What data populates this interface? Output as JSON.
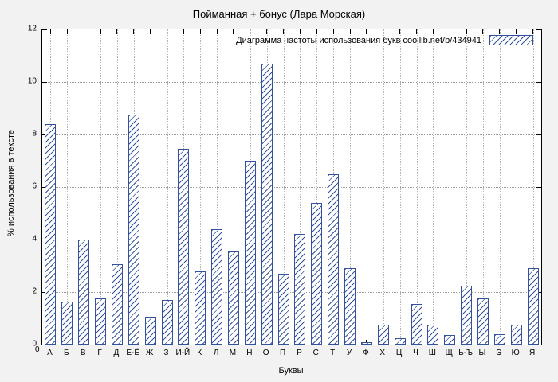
{
  "title": "Пойманная + бонус (Лара Морская)",
  "legend": {
    "label": "Диаграмма частоты использования букв  coollib.net/b/434941"
  },
  "axes": {
    "x_title": "Буквы",
    "y_title": "% использования в тексте"
  },
  "colors": {
    "accent": "#33519e",
    "background": "#f2f2f2",
    "plot_background": "#ffffff",
    "grid": "#9a9a9a"
  },
  "chart_data": {
    "type": "bar",
    "title": "Пойманная + бонус (Лара Морская)",
    "xlabel": "Буквы",
    "ylabel": "% использования в тексте",
    "ylim": [
      0,
      12
    ],
    "yticks": [
      0,
      2,
      4,
      6,
      8,
      10,
      12
    ],
    "grid": true,
    "legend_position": "top-right",
    "legend_entry": "Диаграмма частоты использования букв  coollib.net/b/434941",
    "bar_style": "hatched-diagonal",
    "categories": [
      "А",
      "Б",
      "В",
      "Г",
      "Д",
      "Е-Ё",
      "Ж",
      "З",
      "И-Й",
      "К",
      "Л",
      "М",
      "Н",
      "О",
      "П",
      "Р",
      "С",
      "Т",
      "У",
      "Ф",
      "Х",
      "Ц",
      "Ч",
      "Ш",
      "Щ",
      "Ь-Ъ",
      "Ы",
      "Э",
      "Ю",
      "Я"
    ],
    "values": [
      8.4,
      1.65,
      4.0,
      1.75,
      3.05,
      8.75,
      1.05,
      1.7,
      7.45,
      2.8,
      4.4,
      3.55,
      7.0,
      10.7,
      2.7,
      4.2,
      5.4,
      6.5,
      2.9,
      0.1,
      0.75,
      0.25,
      1.55,
      0.75,
      0.35,
      2.25,
      1.75,
      0.4,
      0.75,
      2.9
    ]
  }
}
